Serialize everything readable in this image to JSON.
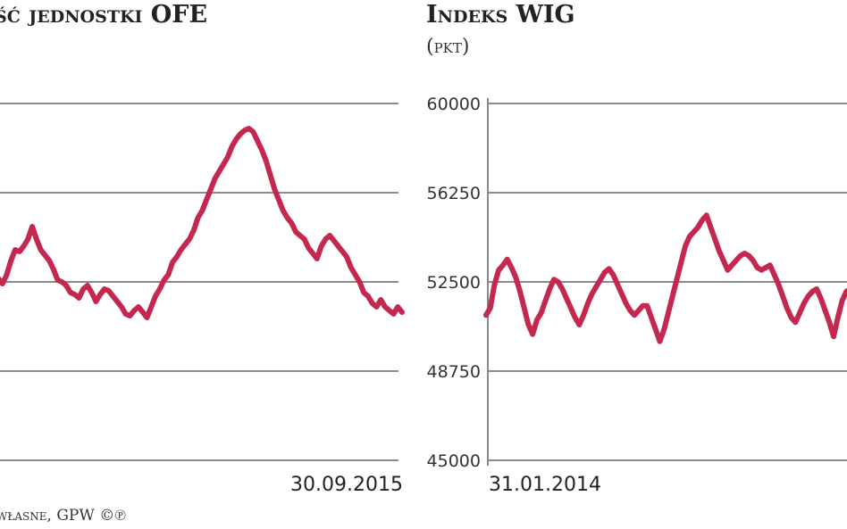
{
  "colors": {
    "series": "#c4284f",
    "grid": "#8a8a8a",
    "text": "#222222"
  },
  "left_panel": {
    "title": "ść jednostki OFE",
    "end_date_label": "30.09.2015",
    "source": "własne, GPW ©℗"
  },
  "right_panel": {
    "title": "Indeks WIG",
    "subtitle": "(pkt)",
    "start_date_label": "31.01.2014"
  },
  "chart_data": [
    {
      "type": "line",
      "title": "ść jednostki OFE",
      "x_end_label": "30.09.2015",
      "y_tick_labels": [],
      "grid": true,
      "series": [
        {
          "values": [
            0.51,
            0.495,
            0.52,
            0.56,
            0.59,
            0.585,
            0.6,
            0.62,
            0.655,
            0.62,
            0.59,
            0.575,
            0.56,
            0.535,
            0.505,
            0.5,
            0.49,
            0.47,
            0.465,
            0.455,
            0.48,
            0.49,
            0.47,
            0.445,
            0.465,
            0.48,
            0.475,
            0.46,
            0.445,
            0.43,
            0.41,
            0.405,
            0.42,
            0.43,
            0.415,
            0.4,
            0.43,
            0.46,
            0.48,
            0.505,
            0.52,
            0.555,
            0.57,
            0.59,
            0.605,
            0.62,
            0.645,
            0.68,
            0.7,
            0.73,
            0.76,
            0.79,
            0.81,
            0.83,
            0.85,
            0.88,
            0.9,
            0.915,
            0.925,
            0.93,
            0.92,
            0.895,
            0.87,
            0.84,
            0.8,
            0.76,
            0.73,
            0.7,
            0.68,
            0.665,
            0.64,
            0.63,
            0.62,
            0.595,
            0.58,
            0.565,
            0.6,
            0.62,
            0.63,
            0.615,
            0.6,
            0.585,
            0.57,
            0.54,
            0.52,
            0.5,
            0.47,
            0.46,
            0.44,
            0.43,
            0.45,
            0.43,
            0.42,
            0.41,
            0.43,
            0.415
          ]
        }
      ]
    },
    {
      "type": "line",
      "title": "Indeks WIG",
      "ylabel": "(pkt)",
      "x_start_label": "31.01.2014",
      "ylim": [
        45000,
        60000
      ],
      "y_ticks": [
        60000,
        56250,
        52500,
        48750,
        45000
      ],
      "grid": true,
      "series": [
        {
          "values": [
            51100,
            51400,
            52400,
            53000,
            53200,
            53450,
            53100,
            52700,
            52100,
            51400,
            50700,
            50300,
            50900,
            51200,
            51700,
            52200,
            52600,
            52500,
            52200,
            51800,
            51400,
            51000,
            50700,
            51100,
            51600,
            52000,
            52300,
            52600,
            52900,
            53050,
            52800,
            52400,
            52000,
            51600,
            51300,
            51100,
            51300,
            51500,
            51500,
            51000,
            50500,
            50000,
            50500,
            51200,
            51900,
            52600,
            53300,
            54000,
            54400,
            54600,
            54800,
            55100,
            55300,
            54800,
            54300,
            53800,
            53400,
            53000,
            53200,
            53400,
            53600,
            53700,
            53600,
            53400,
            53100,
            53000,
            53100,
            53200,
            52800,
            52400,
            51900,
            51400,
            51000,
            50800,
            51200,
            51600,
            51900,
            52100,
            52200,
            51800,
            51300,
            50800,
            50200,
            51000,
            51700,
            52100,
            52200
          ]
        }
      ]
    }
  ]
}
